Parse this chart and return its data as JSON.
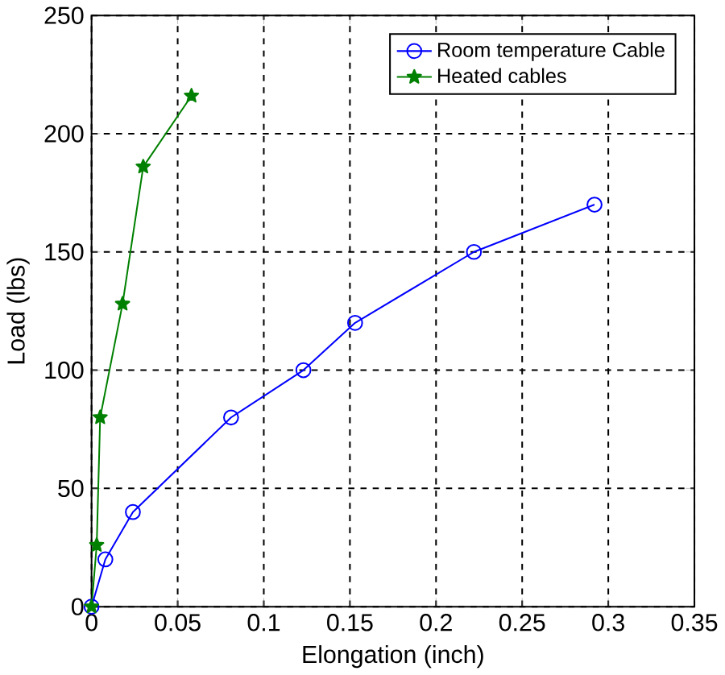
{
  "chart_data": {
    "type": "line",
    "xlabel": "Elongation (inch)",
    "ylabel": "Load (lbs)",
    "xlim": [
      0,
      0.35
    ],
    "ylim": [
      0,
      250
    ],
    "xticks": [
      0,
      0.05,
      0.1,
      0.15,
      0.2,
      0.25,
      0.3,
      0.35
    ],
    "yticks": [
      0,
      50,
      100,
      150,
      200,
      250
    ],
    "grid": true,
    "legend": "top right",
    "line_style": "solid",
    "series": [
      {
        "name": "Room temperature Cable",
        "color": "#0000ff",
        "marker": "circle",
        "x": [
          0,
          0.008,
          0.024,
          0.081,
          0.123,
          0.153,
          0.222,
          0.292
        ],
        "values": [
          0,
          20,
          40,
          80,
          100,
          120,
          150,
          170
        ]
      },
      {
        "name": "Heated cables",
        "color": "#008000",
        "marker": "star",
        "x": [
          0,
          0.003,
          0.005,
          0.018,
          0.03,
          0.058
        ],
        "values": [
          0,
          26,
          80,
          128,
          186,
          216
        ]
      }
    ]
  }
}
